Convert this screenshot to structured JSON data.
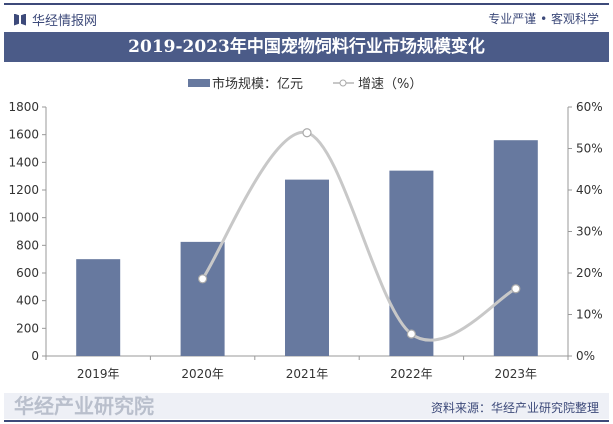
{
  "header": {
    "brand": "华经情报网",
    "slogan": "专业严谨 • 客观科学"
  },
  "chart_data": {
    "type": "bar+line",
    "title": "2019-2023年中国宠物饲料行业市场规模变化",
    "categories": [
      "2019年",
      "2020年",
      "2021年",
      "2022年",
      "2023年"
    ],
    "series": [
      {
        "name": "市场规模：亿元",
        "type": "bar",
        "axis": "left",
        "color": "#67799f",
        "values": [
          700,
          825,
          1275,
          1340,
          1560
        ]
      },
      {
        "name": "增速（%）",
        "type": "line",
        "axis": "right",
        "color": "#c8c8c8",
        "values": [
          null,
          18.6,
          53.8,
          5.3,
          16.2
        ]
      }
    ],
    "y_left": {
      "min": 0,
      "max": 1800,
      "ticks": [
        "0",
        "200",
        "400",
        "600",
        "800",
        "1000",
        "1200",
        "1400",
        "1600",
        "1800"
      ]
    },
    "y_right": {
      "min": 0,
      "max": 60,
      "ticks": [
        "0%",
        "10%",
        "20%",
        "30%",
        "40%",
        "50%",
        "60%"
      ]
    },
    "legend": "top-center",
    "grid": false
  },
  "footer": {
    "source": "资料来源：华经产业研究院整理",
    "watermark": "华经产业研究院"
  }
}
